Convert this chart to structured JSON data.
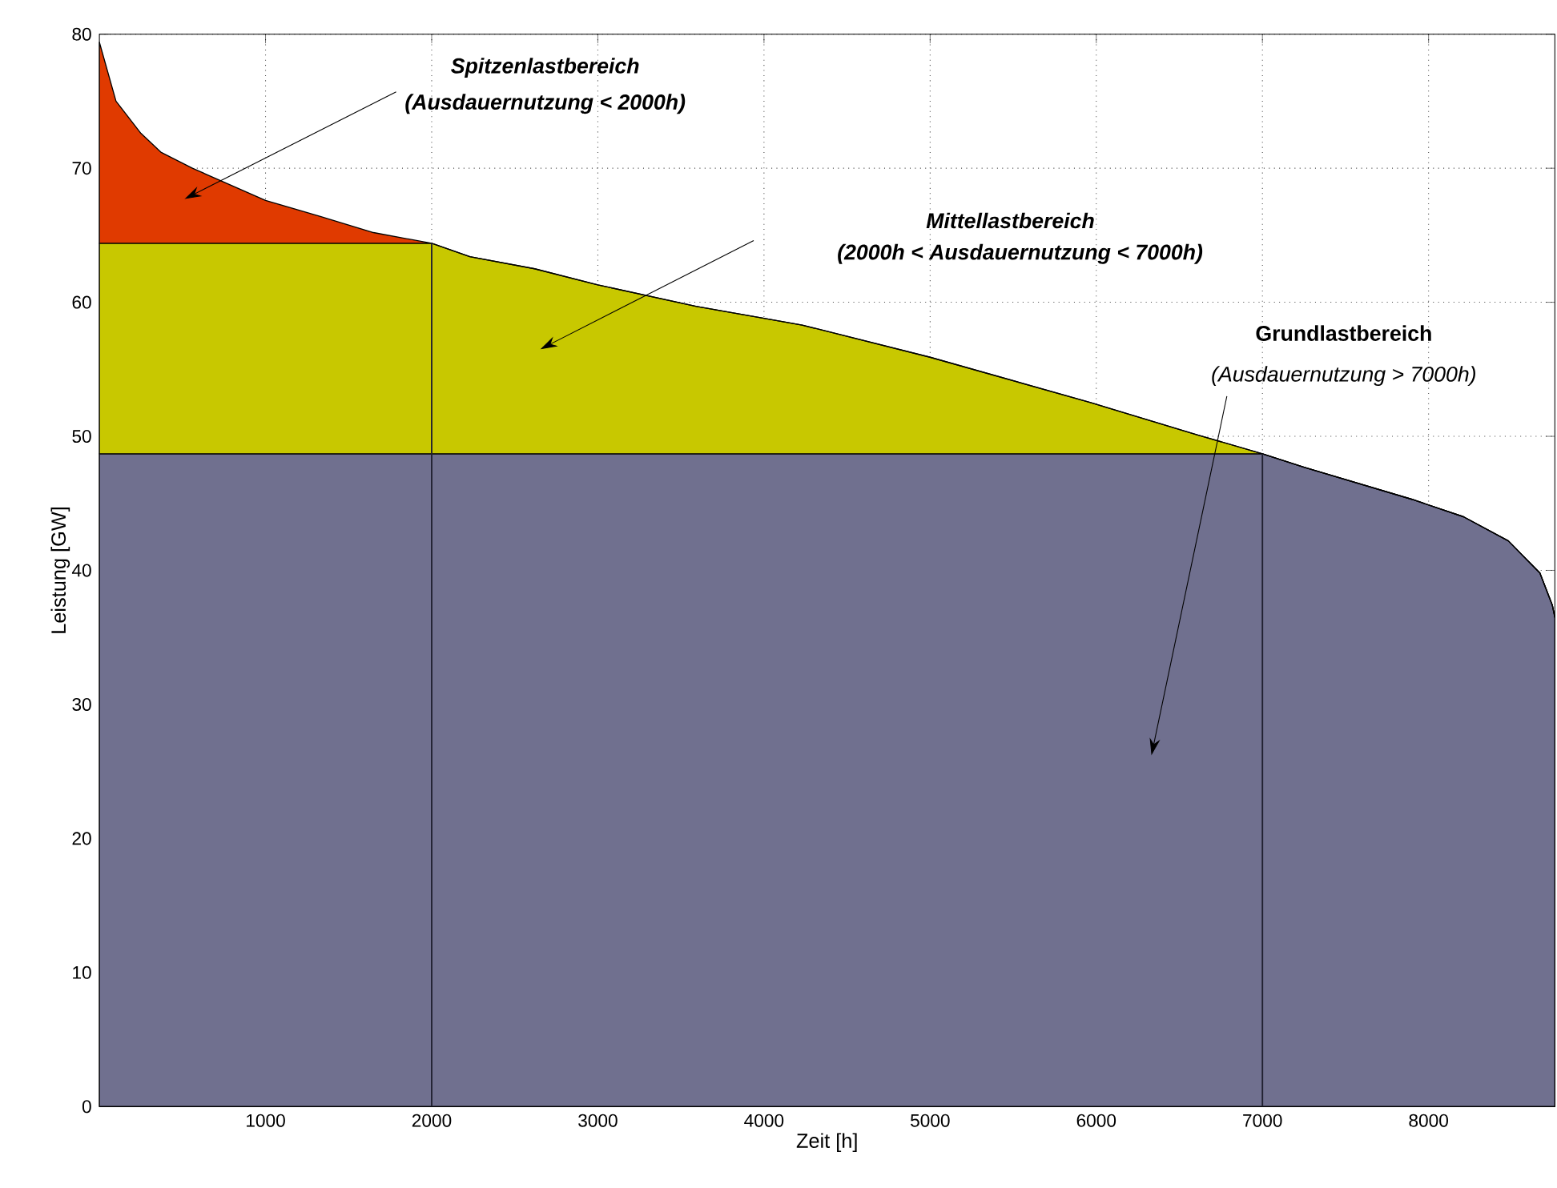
{
  "chart_data": {
    "type": "area",
    "stacked": true,
    "xlabel": "Zeit [h]",
    "ylabel": "Leistung [GW]",
    "x": [
      0,
      100,
      250,
      370,
      560,
      1000,
      1330,
      1650,
      2000,
      2230,
      2620,
      3000,
      3590,
      4000,
      4230,
      5000,
      5970,
      6610,
      7000,
      7250,
      7900,
      8210,
      8480,
      8670,
      8745,
      8760
    ],
    "series": [
      {
        "color": "#70708f",
        "values": [
          48.7,
          48.7,
          48.7,
          48.7,
          48.7,
          48.7,
          48.7,
          48.7,
          48.7,
          48.7,
          48.7,
          48.7,
          48.7,
          48.7,
          48.7,
          48.7,
          48.7,
          48.7,
          48.7,
          47.7,
          45.3,
          44.0,
          42.2,
          39.8,
          37.4,
          36.5
        ]
      },
      {
        "color": "#c8c800",
        "values": [
          15.7,
          15.7,
          15.7,
          15.7,
          15.7,
          15.7,
          15.7,
          15.7,
          15.7,
          14.7,
          13.8,
          12.6,
          11.0,
          10.1,
          9.6,
          7.2,
          3.8,
          1.4,
          0,
          0,
          0,
          0,
          0,
          0,
          0,
          0
        ]
      },
      {
        "color": "#e03a00",
        "values": [
          15.0,
          10.6,
          8.2,
          6.8,
          5.6,
          3.2,
          2.0,
          0.8,
          0,
          0,
          0,
          0,
          0,
          0,
          0,
          0,
          0,
          0,
          0,
          0,
          0,
          0,
          0,
          0,
          0,
          0
        ]
      }
    ],
    "xlim": [
      0,
      8760
    ],
    "ylim": [
      0,
      80
    ],
    "xticks": [
      1000,
      2000,
      3000,
      4000,
      5000,
      6000,
      7000,
      8000
    ],
    "yticks": [
      0,
      10,
      20,
      30,
      40,
      50,
      60,
      70,
      80
    ],
    "grid": true,
    "ref_lines": [
      {
        "axis": "x",
        "value": 2000,
        "color": "#202030"
      },
      {
        "axis": "x",
        "value": 7000,
        "color": "#202030"
      }
    ],
    "annotations": [
      "Spitzenlastbereich",
      "(Ausdauernutzung < 2000h)",
      "Mittellastbereich",
      "(2000h < Ausdauernutzung < 7000h)",
      "Grundlastbereich",
      "(Ausdauernutzung > 7000h)"
    ]
  }
}
